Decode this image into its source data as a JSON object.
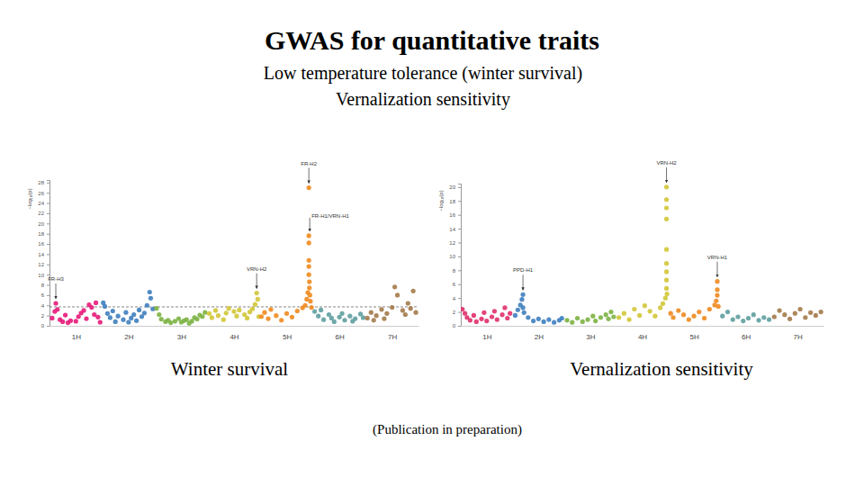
{
  "heading": "GWAS for quantitative traits",
  "subheading": [
    "Low temperature tolerance (winter survival)",
    "Vernalization sensitivity"
  ],
  "note": "(Publication in preparation)",
  "chart_data": [
    {
      "type": "scatter",
      "title": "Winter survival",
      "y_label": "−log₁₀(p)",
      "xlim": [
        0,
        7
      ],
      "xticks": [
        {
          "value": 0.5,
          "label": "1H"
        },
        {
          "value": 1.5,
          "label": "2H"
        },
        {
          "value": 2.5,
          "label": "3H"
        },
        {
          "value": 3.5,
          "label": "4H"
        },
        {
          "value": 4.5,
          "label": "5H"
        },
        {
          "value": 5.5,
          "label": "6H"
        },
        {
          "value": 6.5,
          "label": "7H"
        }
      ],
      "ylim": [
        0,
        28.5
      ],
      "yticks": [
        0,
        2,
        4,
        6,
        8,
        10,
        12,
        14,
        16,
        18,
        20,
        22,
        24,
        26,
        28
      ],
      "threshold": 3.7,
      "series": [
        {
          "color": "#e8197a",
          "x": [
            0.05,
            0.1,
            0.12,
            0.15,
            0.2,
            0.25,
            0.3,
            0.35,
            0.4,
            0.5,
            0.55,
            0.6,
            0.65,
            0.7,
            0.75,
            0.8,
            0.85,
            0.88,
            0.92,
            0.96
          ],
          "values": [
            1.5,
            2.8,
            4.4,
            3.2,
            1.2,
            0.8,
            2.1,
            0.6,
            1.0,
            0.9,
            1.8,
            2.5,
            3.0,
            1.4,
            4.1,
            3.6,
            2.2,
            4.5,
            1.7,
            0.7
          ]
        },
        {
          "color": "#3f7fbf",
          "x": [
            1.02,
            1.05,
            1.1,
            1.15,
            1.2,
            1.25,
            1.3,
            1.4,
            1.45,
            1.5,
            1.55,
            1.6,
            1.65,
            1.7,
            1.75,
            1.8,
            1.85,
            1.9,
            1.92,
            1.96
          ],
          "values": [
            4.5,
            3.8,
            2.4,
            1.6,
            2.9,
            0.8,
            1.9,
            1.2,
            2.6,
            0.7,
            1.5,
            2.2,
            1.0,
            3.1,
            1.8,
            2.5,
            4.0,
            6.6,
            5.4,
            3.3
          ]
        },
        {
          "color": "#7cb342",
          "x": [
            2.03,
            2.08,
            2.12,
            2.2,
            2.25,
            2.3,
            2.38,
            2.45,
            2.5,
            2.55,
            2.6,
            2.65,
            2.7,
            2.75,
            2.8,
            2.85,
            2.9,
            2.95
          ],
          "values": [
            3.4,
            2.2,
            1.3,
            0.8,
            1.1,
            0.6,
            0.9,
            1.4,
            0.7,
            1.0,
            1.2,
            0.5,
            0.9,
            1.6,
            1.3,
            2.1,
            1.8,
            2.6
          ]
        },
        {
          "color": "#d2c636",
          "x": [
            3.03,
            3.08,
            3.15,
            3.2,
            3.3,
            3.35,
            3.4,
            3.5,
            3.55,
            3.6,
            3.7,
            3.75,
            3.8,
            3.85,
            3.9,
            3.93,
            3.95,
            3.97
          ],
          "values": [
            2.4,
            1.6,
            3.0,
            2.0,
            1.2,
            2.5,
            3.4,
            2.8,
            1.9,
            3.1,
            2.2,
            1.5,
            2.7,
            3.3,
            4.2,
            6.4,
            5.2,
            1.8
          ]
        },
        {
          "color": "#ef8a1f",
          "x": [
            4.02,
            4.08,
            4.15,
            4.2,
            4.3,
            4.4,
            4.5,
            4.6,
            4.7,
            4.8,
            4.85,
            4.88,
            4.9,
            4.92,
            4.92,
            4.92,
            4.92,
            4.92,
            4.92,
            4.93,
            4.93,
            4.94,
            4.95,
            4.97
          ],
          "values": [
            1.8,
            2.6,
            1.4,
            3.2,
            2.0,
            1.1,
            2.4,
            1.7,
            2.9,
            3.5,
            4.0,
            5.2,
            6.5,
            27.0,
            17.6,
            16.2,
            12.8,
            11.6,
            10.0,
            8.6,
            7.4,
            6.0,
            4.8,
            3.6
          ]
        },
        {
          "color": "#5f9ea0",
          "x": [
            5.03,
            5.1,
            5.15,
            5.2,
            5.3,
            5.35,
            5.4,
            5.5,
            5.55,
            5.6,
            5.7,
            5.75,
            5.8,
            5.9,
            5.95
          ],
          "values": [
            2.8,
            1.9,
            3.1,
            1.2,
            2.2,
            1.5,
            0.8,
            1.7,
            2.4,
            1.1,
            1.9,
            0.9,
            1.4,
            2.3,
            1.6
          ]
        },
        {
          "color": "#a47a4a",
          "x": [
            6.03,
            6.1,
            6.15,
            6.2,
            6.3,
            6.35,
            6.4,
            6.5,
            6.55,
            6.6,
            6.7,
            6.75,
            6.8,
            6.85,
            6.9,
            6.95
          ],
          "values": [
            1.5,
            2.6,
            1.1,
            2.0,
            3.2,
            1.4,
            2.4,
            3.6,
            7.6,
            6.0,
            3.0,
            2.2,
            4.4,
            3.4,
            6.8,
            2.6
          ]
        }
      ],
      "annotations": [
        {
          "text": "FR-H3",
          "x": 0.12,
          "y": 4.4
        },
        {
          "text": "FR-H2",
          "x": 4.92,
          "y": 27.0
        },
        {
          "text": "FR-H1/VRN-H1",
          "x": 4.92,
          "y": 17.6
        },
        {
          "text": "VRN-H2",
          "x": 3.93,
          "y": 6.4
        }
      ]
    },
    {
      "type": "scatter",
      "title": "Vernalization sensitivity",
      "y_label": "−log₁₀(p)",
      "xlim": [
        0,
        7
      ],
      "xticks": [
        {
          "value": 0.5,
          "label": "1H"
        },
        {
          "value": 1.5,
          "label": "2H"
        },
        {
          "value": 2.5,
          "label": "3H"
        },
        {
          "value": 3.5,
          "label": "4H"
        },
        {
          "value": 4.5,
          "label": "5H"
        },
        {
          "value": 5.5,
          "label": "6H"
        },
        {
          "value": 6.5,
          "label": "7H"
        }
      ],
      "ylim": [
        0,
        20.5
      ],
      "yticks": [
        0,
        2,
        4,
        6,
        8,
        10,
        12,
        14,
        16,
        18,
        20
      ],
      "series": [
        {
          "color": "#e0306a",
          "x": [
            0.03,
            0.08,
            0.12,
            0.18,
            0.25,
            0.3,
            0.4,
            0.45,
            0.5,
            0.6,
            0.65,
            0.7,
            0.8,
            0.85,
            0.9,
            0.95
          ],
          "values": [
            2.4,
            1.8,
            1.2,
            0.8,
            1.5,
            0.6,
            1.0,
            1.9,
            0.7,
            1.3,
            2.1,
            0.9,
            1.6,
            2.6,
            1.1,
            1.8
          ]
        },
        {
          "color": "#3f7fbf",
          "x": [
            1.05,
            1.1,
            1.15,
            1.18,
            1.2,
            1.2,
            1.22,
            1.3,
            1.4,
            1.5,
            1.6,
            1.7,
            1.8,
            1.9,
            1.95
          ],
          "values": [
            1.5,
            2.3,
            3.0,
            3.8,
            4.5,
            2.6,
            1.9,
            1.2,
            0.7,
            1.0,
            0.6,
            0.9,
            0.5,
            0.8,
            1.1
          ]
        },
        {
          "color": "#7cb342",
          "x": [
            2.05,
            2.15,
            2.25,
            2.35,
            2.45,
            2.55,
            2.6,
            2.7,
            2.8,
            2.85,
            2.9,
            2.95
          ],
          "values": [
            0.8,
            0.5,
            1.1,
            0.6,
            0.9,
            1.4,
            0.7,
            1.2,
            1.6,
            1.0,
            2.0,
            1.3
          ]
        },
        {
          "color": "#d2c636",
          "x": [
            3.05,
            3.15,
            3.25,
            3.35,
            3.45,
            3.55,
            3.65,
            3.75,
            3.85,
            3.9,
            3.95,
            3.97,
            3.97,
            3.97,
            3.97,
            3.97,
            3.97,
            3.97,
            3.97,
            3.97,
            3.98
          ],
          "values": [
            1.2,
            1.8,
            0.9,
            2.4,
            1.5,
            2.9,
            2.1,
            1.4,
            2.6,
            3.2,
            4.0,
            20.0,
            18.2,
            17.0,
            15.4,
            11.0,
            9.0,
            7.8,
            6.6,
            5.4,
            4.6
          ]
        },
        {
          "color": "#ef8a1f",
          "x": [
            4.05,
            4.1,
            4.2,
            4.3,
            4.4,
            4.5,
            4.6,
            4.7,
            4.8,
            4.9,
            4.93,
            4.95,
            4.95,
            4.95,
            4.97
          ],
          "values": [
            1.8,
            1.2,
            2.2,
            1.6,
            0.9,
            1.4,
            2.0,
            1.1,
            2.4,
            3.0,
            3.6,
            6.4,
            5.2,
            4.4,
            2.8
          ]
        },
        {
          "color": "#5f9ea0",
          "x": [
            5.05,
            5.15,
            5.25,
            5.35,
            5.45,
            5.55,
            5.65,
            5.75,
            5.85,
            5.95
          ],
          "values": [
            1.4,
            2.0,
            0.9,
            1.3,
            0.7,
            1.1,
            1.6,
            0.8,
            1.2,
            0.9
          ]
        },
        {
          "color": "#a47a4a",
          "x": [
            6.05,
            6.15,
            6.25,
            6.35,
            6.45,
            6.55,
            6.65,
            6.75,
            6.85,
            6.95
          ],
          "values": [
            1.3,
            2.2,
            1.6,
            1.0,
            1.8,
            2.4,
            1.2,
            1.9,
            1.5,
            2.0
          ]
        }
      ],
      "annotations": [
        {
          "text": "VRN-H2",
          "x": 3.97,
          "y": 20.0
        },
        {
          "text": "PPD-H1",
          "x": 1.2,
          "y": 4.5
        },
        {
          "text": "VRN-H1",
          "x": 4.95,
          "y": 6.4
        }
      ]
    }
  ]
}
